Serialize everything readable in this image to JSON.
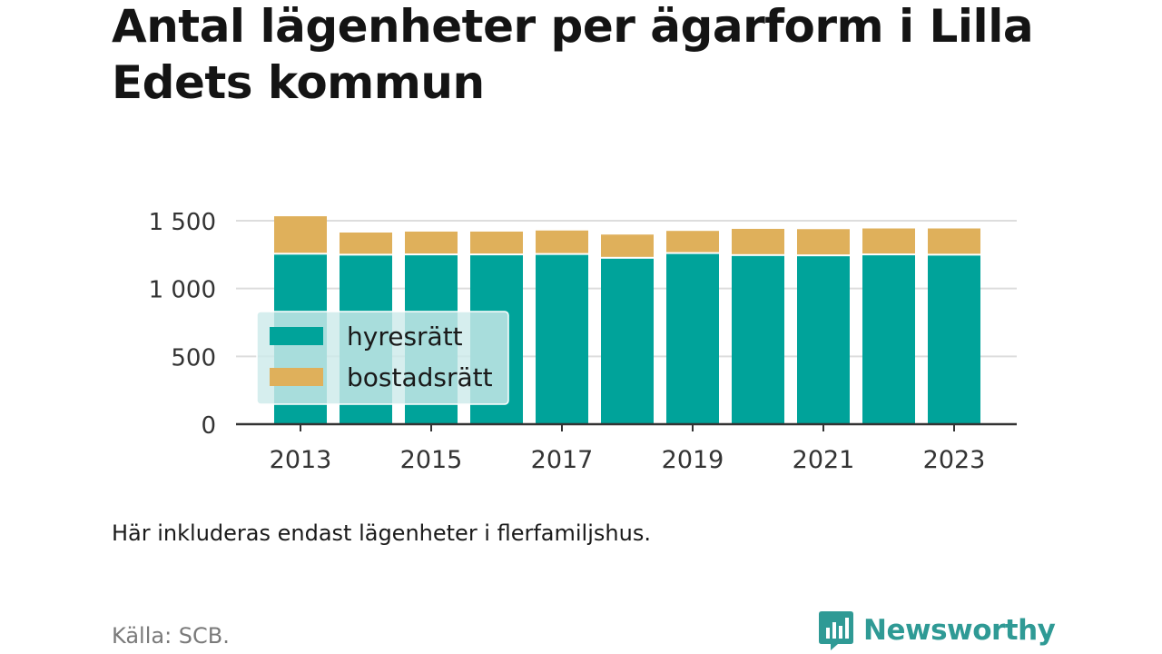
{
  "title": "Antal lägenheter per ägarform i Lilla Edets kommun",
  "note": "Här inkluderas endast lägenheter i flerfamiljshus.",
  "source": "Källa: SCB.",
  "brand": "Newsworthy",
  "colors": {
    "hyresratt": "#00a39a",
    "bostadsratt": "#dfb05b",
    "grid": "#dddddd",
    "axis": "#333333",
    "legend_bg": "#cdeaea",
    "brand": "#2f9a95"
  },
  "chart_data": {
    "type": "bar",
    "stacked": true,
    "x": [
      2013,
      2014,
      2015,
      2016,
      2017,
      2018,
      2019,
      2020,
      2021,
      2022,
      2023
    ],
    "x_tick_labels": [
      "2013",
      "2015",
      "2017",
      "2019",
      "2021",
      "2023"
    ],
    "series": [
      {
        "name": "hyresrätt",
        "values": [
          1250,
          1243,
          1245,
          1245,
          1248,
          1220,
          1255,
          1240,
          1238,
          1245,
          1243
        ]
      },
      {
        "name": "bostadsrätt",
        "values": [
          283,
          170,
          175,
          175,
          180,
          178,
          170,
          200,
          200,
          198,
          200
        ]
      }
    ],
    "ylim": [
      0,
      1600
    ],
    "y_ticks": [
      0,
      500,
      1000,
      1500
    ],
    "y_tick_labels": [
      "0",
      "500",
      "1 000",
      "1 500"
    ],
    "grid": true,
    "legend_position": "left-middle"
  }
}
